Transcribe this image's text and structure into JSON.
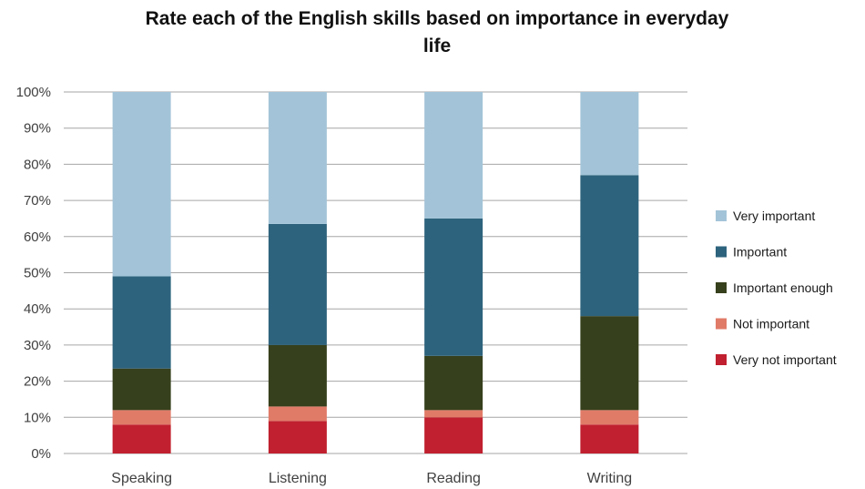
{
  "chart_data": {
    "type": "bar",
    "stacked": true,
    "title": "Rate each of the English skills based on importance in everyday life",
    "xlabel": "",
    "ylabel": "",
    "ylim": [
      0,
      100
    ],
    "y_ticks": [
      "0%",
      "10%",
      "20%",
      "30%",
      "40%",
      "50%",
      "60%",
      "70%",
      "80%",
      "90%",
      "100%"
    ],
    "grid": true,
    "legend_position": "right",
    "categories": [
      "Speaking",
      "Listening",
      "Reading",
      "Writing"
    ],
    "series": [
      {
        "name": "Very not important",
        "color": "#c0202f",
        "values": [
          8,
          9,
          10,
          8
        ]
      },
      {
        "name": "Not important",
        "color": "#e07b68",
        "values": [
          4,
          4,
          2,
          4
        ]
      },
      {
        "name": "Important enough",
        "color": "#36401c",
        "values": [
          11.5,
          17,
          15,
          26
        ]
      },
      {
        "name": "Important",
        "color": "#2e637d",
        "values": [
          25.5,
          33.5,
          38,
          39
        ]
      },
      {
        "name": "Very important",
        "color": "#a3c4d8",
        "values": [
          51,
          36.5,
          35,
          23
        ]
      }
    ]
  }
}
